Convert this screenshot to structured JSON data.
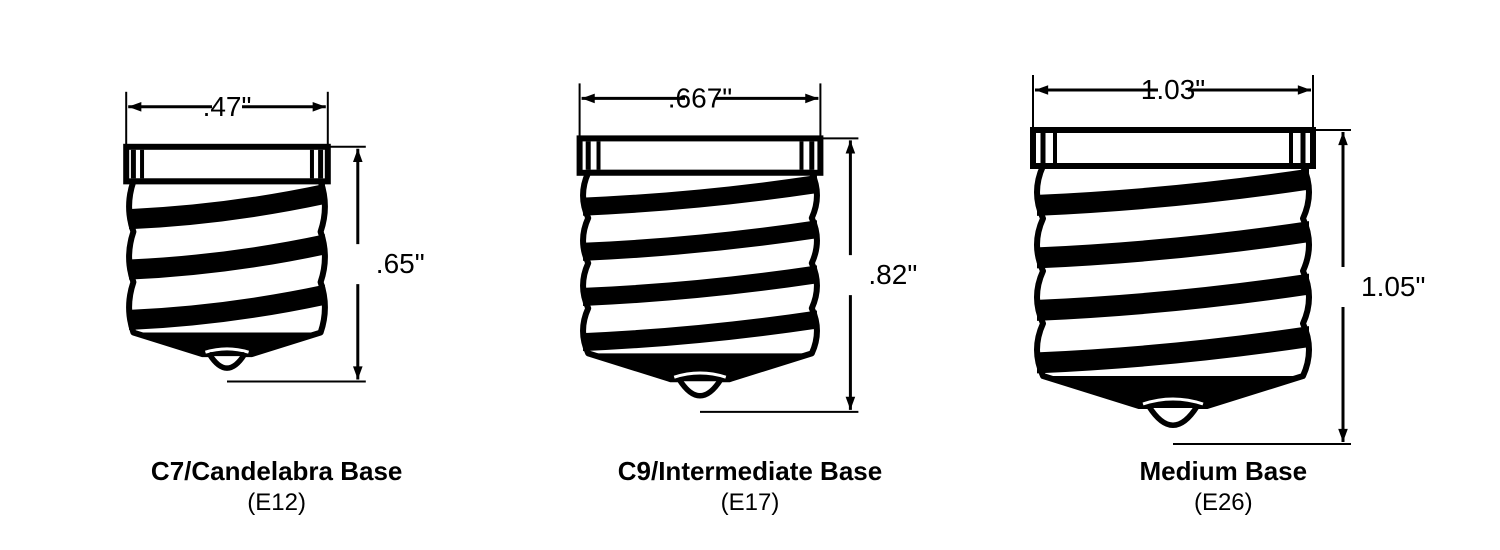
{
  "type": "infographic",
  "background_color": "#ffffff",
  "stroke_color": "#000000",
  "stroke_width_heavy": 6,
  "stroke_width_thin": 2,
  "font_family": "Arial",
  "title_fontsize": 26,
  "title_fontweight": 700,
  "sub_fontsize": 24,
  "sub_fontweight": 400,
  "dim_fontsize": 28,
  "bases": [
    {
      "id": "c7",
      "title": "C7/Candelabra Base",
      "subtitle": "(E12)",
      "width_dim": ".47\"",
      "height_dim": ".65\"",
      "svg_scale": 0.72,
      "collar_height": 48,
      "thread_rows": 3
    },
    {
      "id": "c9",
      "title": "C9/Intermediate Base",
      "subtitle": "(E17)",
      "width_dim": ".667\"",
      "height_dim": ".82\"",
      "svg_scale": 0.86,
      "collar_height": 40,
      "thread_rows": 4
    },
    {
      "id": "medium",
      "title": "Medium Base",
      "subtitle": "(E26)",
      "width_dim": "1.03\"",
      "height_dim": "1.05\"",
      "svg_scale": 1.0,
      "collar_height": 36,
      "thread_rows": 4
    }
  ]
}
